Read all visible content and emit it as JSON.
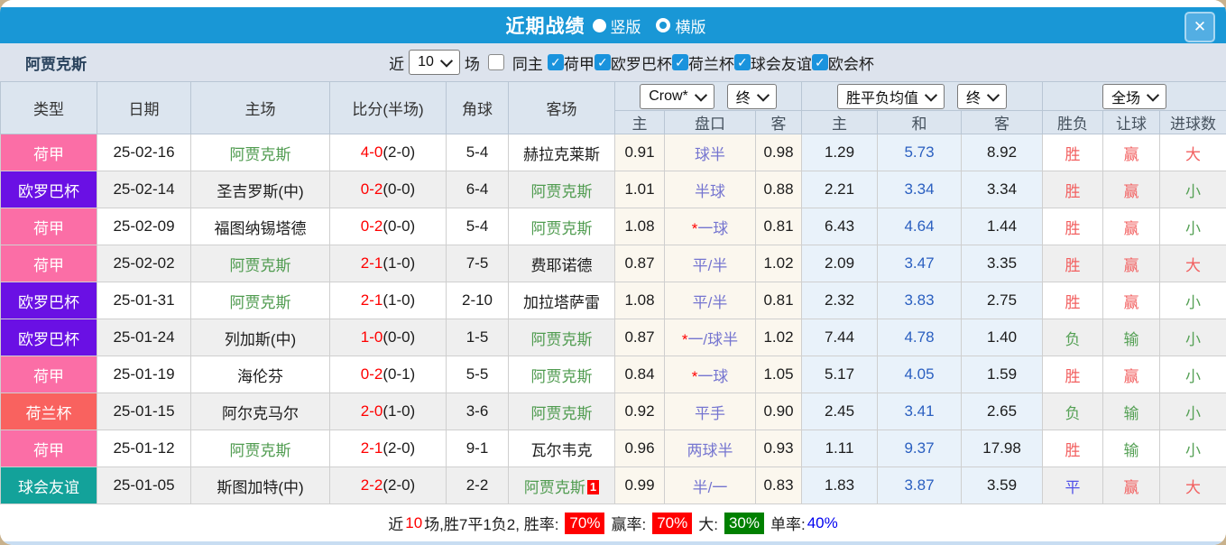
{
  "titlebar": {
    "title": "近期战绩",
    "view_options": [
      {
        "label": "竖版",
        "selected": true
      },
      {
        "label": "横版",
        "selected": false
      }
    ],
    "close_label": "✕"
  },
  "filters": {
    "team": "阿贾克斯",
    "near_label": "近",
    "match_count": "10",
    "games_label": "场",
    "same_home": {
      "label": "同主",
      "checked": false
    },
    "leagues": [
      {
        "label": "荷甲",
        "checked": true
      },
      {
        "label": "欧罗巴杯",
        "checked": true
      },
      {
        "label": "荷兰杯",
        "checked": true
      },
      {
        "label": "球会友谊",
        "checked": true
      },
      {
        "label": "欧会杯",
        "checked": true
      }
    ]
  },
  "table": {
    "col_headers": [
      "类型",
      "日期",
      "主场",
      "比分(半场)",
      "角球",
      "客场"
    ],
    "dropdowns": {
      "company": "Crow*",
      "company_state": "终",
      "avg": "胜平负均值",
      "avg_state": "终",
      "scope": "全场"
    },
    "sub_headers": [
      "主",
      "盘口",
      "客",
      "主",
      "和",
      "客",
      "胜负",
      "让球",
      "进球数"
    ],
    "rows": [
      {
        "type": "荷甲",
        "date": "25-02-16",
        "home": "阿贾克斯",
        "home_hl": true,
        "score": "4-0",
        "half": "(2-0)",
        "corners": "5-4",
        "away": "赫拉克莱斯",
        "away_hl": false,
        "away_badge": "",
        "odds_home": "0.91",
        "handicap_star": "",
        "handicap": "球半",
        "odds_away": "0.98",
        "avg_home": "1.29",
        "avg_draw": "5.73",
        "avg_away": "8.92",
        "result": "胜",
        "result_c": "red",
        "handicap_res": "赢",
        "handicap_res_c": "red",
        "goals": "大",
        "goals_c": "red"
      },
      {
        "type": "欧罗巴杯",
        "date": "25-02-14",
        "home": "圣吉罗斯(中)",
        "home_hl": false,
        "score": "0-2",
        "half": "(0-0)",
        "corners": "6-4",
        "away": "阿贾克斯",
        "away_hl": true,
        "away_badge": "",
        "odds_home": "1.01",
        "handicap_star": "",
        "handicap": "半球",
        "odds_away": "0.88",
        "avg_home": "2.21",
        "avg_draw": "3.34",
        "avg_away": "3.34",
        "result": "胜",
        "result_c": "red",
        "handicap_res": "赢",
        "handicap_res_c": "red",
        "goals": "小",
        "goals_c": "green"
      },
      {
        "type": "荷甲",
        "date": "25-02-09",
        "home": "福图纳锡塔德",
        "home_hl": false,
        "score": "0-2",
        "half": "(0-0)",
        "corners": "5-4",
        "away": "阿贾克斯",
        "away_hl": true,
        "away_badge": "",
        "odds_home": "1.08",
        "handicap_star": "*",
        "handicap": "一球",
        "odds_away": "0.81",
        "avg_home": "6.43",
        "avg_draw": "4.64",
        "avg_away": "1.44",
        "result": "胜",
        "result_c": "red",
        "handicap_res": "赢",
        "handicap_res_c": "red",
        "goals": "小",
        "goals_c": "green"
      },
      {
        "type": "荷甲",
        "date": "25-02-02",
        "home": "阿贾克斯",
        "home_hl": true,
        "score": "2-1",
        "half": "(1-0)",
        "corners": "7-5",
        "away": "费耶诺德",
        "away_hl": false,
        "away_badge": "",
        "odds_home": "0.87",
        "handicap_star": "",
        "handicap": "平/半",
        "odds_away": "1.02",
        "avg_home": "2.09",
        "avg_draw": "3.47",
        "avg_away": "3.35",
        "result": "胜",
        "result_c": "red",
        "handicap_res": "赢",
        "handicap_res_c": "red",
        "goals": "大",
        "goals_c": "red"
      },
      {
        "type": "欧罗巴杯",
        "date": "25-01-31",
        "home": "阿贾克斯",
        "home_hl": true,
        "score": "2-1",
        "half": "(1-0)",
        "corners": "2-10",
        "away": "加拉塔萨雷",
        "away_hl": false,
        "away_badge": "",
        "odds_home": "1.08",
        "handicap_star": "",
        "handicap": "平/半",
        "odds_away": "0.81",
        "avg_home": "2.32",
        "avg_draw": "3.83",
        "avg_away": "2.75",
        "result": "胜",
        "result_c": "red",
        "handicap_res": "赢",
        "handicap_res_c": "red",
        "goals": "小",
        "goals_c": "green"
      },
      {
        "type": "欧罗巴杯",
        "date": "25-01-24",
        "home": "列加斯(中)",
        "home_hl": false,
        "score": "1-0",
        "half": "(0-0)",
        "corners": "1-5",
        "away": "阿贾克斯",
        "away_hl": true,
        "away_badge": "",
        "odds_home": "0.87",
        "handicap_star": "*",
        "handicap": "一/球半",
        "odds_away": "1.02",
        "avg_home": "7.44",
        "avg_draw": "4.78",
        "avg_away": "1.40",
        "result": "负",
        "result_c": "green",
        "handicap_res": "输",
        "handicap_res_c": "green",
        "goals": "小",
        "goals_c": "green"
      },
      {
        "type": "荷甲",
        "date": "25-01-19",
        "home": "海伦芬",
        "home_hl": false,
        "score": "0-2",
        "half": "(0-1)",
        "corners": "5-5",
        "away": "阿贾克斯",
        "away_hl": true,
        "away_badge": "",
        "odds_home": "0.84",
        "handicap_star": "*",
        "handicap": "一球",
        "odds_away": "1.05",
        "avg_home": "5.17",
        "avg_draw": "4.05",
        "avg_away": "1.59",
        "result": "胜",
        "result_c": "red",
        "handicap_res": "赢",
        "handicap_res_c": "red",
        "goals": "小",
        "goals_c": "green"
      },
      {
        "type": "荷兰杯",
        "date": "25-01-15",
        "home": "阿尔克马尔",
        "home_hl": false,
        "score": "2-0",
        "half": "(1-0)",
        "corners": "3-6",
        "away": "阿贾克斯",
        "away_hl": true,
        "away_badge": "",
        "odds_home": "0.92",
        "handicap_star": "",
        "handicap": "平手",
        "odds_away": "0.90",
        "avg_home": "2.45",
        "avg_draw": "3.41",
        "avg_away": "2.65",
        "result": "负",
        "result_c": "green",
        "handicap_res": "输",
        "handicap_res_c": "green",
        "goals": "小",
        "goals_c": "green"
      },
      {
        "type": "荷甲",
        "date": "25-01-12",
        "home": "阿贾克斯",
        "home_hl": true,
        "score": "2-1",
        "half": "(2-0)",
        "corners": "9-1",
        "away": "瓦尔韦克",
        "away_hl": false,
        "away_badge": "",
        "odds_home": "0.96",
        "handicap_star": "",
        "handicap": "两球半",
        "odds_away": "0.93",
        "avg_home": "1.11",
        "avg_draw": "9.37",
        "avg_away": "17.98",
        "result": "胜",
        "result_c": "red",
        "handicap_res": "输",
        "handicap_res_c": "green",
        "goals": "小",
        "goals_c": "green"
      },
      {
        "type": "球会友谊",
        "date": "25-01-05",
        "home": "斯图加特(中)",
        "home_hl": false,
        "score": "2-2",
        "half": "(2-0)",
        "corners": "2-2",
        "away": "阿贾克斯",
        "away_hl": true,
        "away_badge": "1",
        "odds_home": "0.99",
        "handicap_star": "",
        "handicap": "半/一",
        "odds_away": "0.83",
        "avg_home": "1.83",
        "avg_draw": "3.87",
        "avg_away": "3.59",
        "result": "平",
        "result_c": "blue",
        "handicap_res": "赢",
        "handicap_res_c": "red",
        "goals": "大",
        "goals_c": "red"
      }
    ]
  },
  "summary": {
    "segments": [
      {
        "text": "近",
        "style": "plain"
      },
      {
        "text": "10",
        "style": "red-text"
      },
      {
        "text": "场,胜7平1负2, 胜率:",
        "style": "plain"
      },
      {
        "text": "70%",
        "style": "red-badge"
      },
      {
        "text": "赢率:",
        "style": "plain"
      },
      {
        "text": "70%",
        "style": "red-badge"
      },
      {
        "text": "大:",
        "style": "plain"
      },
      {
        "text": "30%",
        "style": "green-badge"
      },
      {
        "text": "单率:",
        "style": "plain"
      },
      {
        "text": "40%",
        "style": "blue-text"
      }
    ]
  },
  "icons": {
    "check": "✓",
    "close": "✕"
  },
  "colors": {
    "titlebar_bg": "#1997d6",
    "filterbar_bg": "#dde3ed",
    "header_bg": "#dce5ef",
    "checkbox_blue": "#1a93dd",
    "type_colors": {
      "荷甲": "#fb6ea6",
      "欧罗巴杯": "#6a10e4",
      "荷兰杯": "#f9625f",
      "球会友谊": "#13a29a"
    },
    "team_green": "#4f9b4f",
    "score_red": "#ff0000",
    "handicap_blue": "#7575d0",
    "avg_draw_blue": "#2a5fc0",
    "result_red": "#f26060",
    "result_green": "#56a156",
    "result_blue": "#5252e8",
    "text_dark": "#1c1c1c"
  }
}
